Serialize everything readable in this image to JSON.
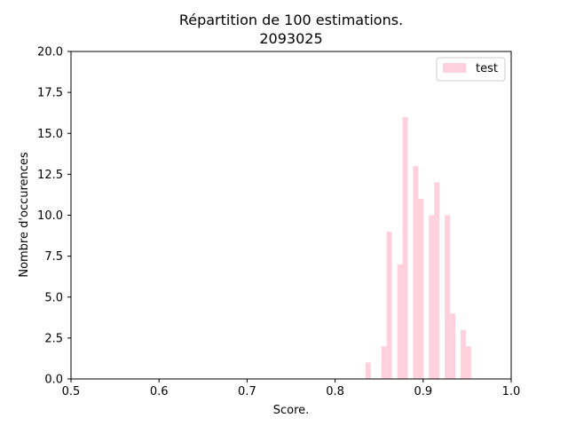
{
  "chart_data": {
    "type": "bar",
    "title": "Répartition de 100 estimations.",
    "subtitle": "2093025",
    "xlabel": "Score.",
    "ylabel": "Nombre d'occurences",
    "xlim": [
      0.5,
      1.0
    ],
    "ylim": [
      0,
      20
    ],
    "xticks": [
      "0.5",
      "0.6",
      "0.7",
      "0.8",
      "0.9",
      "1.0"
    ],
    "yticks": [
      "0.0",
      "2.5",
      "5.0",
      "7.5",
      "10.0",
      "12.5",
      "15.0",
      "17.5",
      "20.0"
    ],
    "grid": false,
    "legend_position": "top-right",
    "series": [
      {
        "name": "test",
        "color": "#ffd1dc",
        "bin_width": 0.006,
        "x": [
          0.8375,
          0.8555,
          0.8615,
          0.8735,
          0.8795,
          0.8915,
          0.8975,
          0.9095,
          0.9155,
          0.9275,
          0.9335,
          0.9455,
          0.9515
        ],
        "values": [
          1,
          2,
          9,
          7,
          16,
          13,
          11,
          10,
          12,
          10,
          4,
          3,
          2
        ]
      }
    ]
  }
}
